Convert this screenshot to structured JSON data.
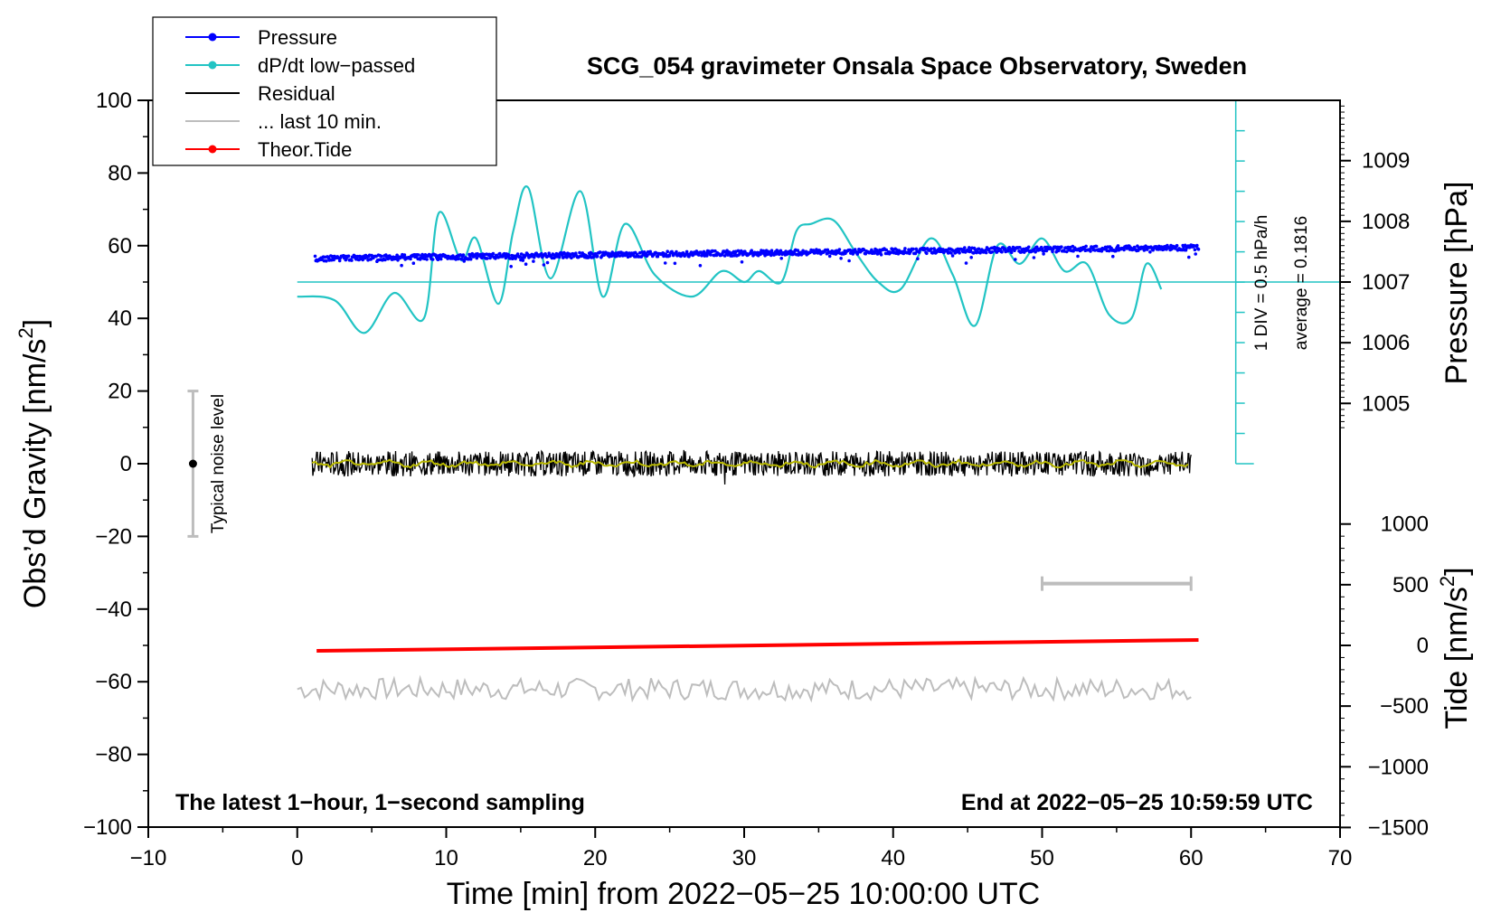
{
  "chart_data": {
    "type": "line",
    "title": "SCG_054 gravimeter Onsala Space Observatory, Sweden",
    "xlabel": "Time [min] from 2022−05−25 10:00:00 UTC",
    "ylabel": "Obs’d Gravity [nm/s2]",
    "ylabel_main": "Obs’d Gravity [nm/s",
    "ylabel_sup": "2",
    "ylabel_end": "]",
    "xlim": [
      -10,
      70
    ],
    "ylim": [
      -100,
      100
    ],
    "x_ticks": [
      "−10",
      "0",
      "10",
      "20",
      "30",
      "40",
      "50",
      "60",
      "70"
    ],
    "y_ticks": [
      "−100",
      "−80",
      "−60",
      "−40",
      "−20",
      "0",
      "20",
      "40",
      "60",
      "80",
      "100"
    ],
    "right_axes": {
      "pressure": {
        "label": "Pressure [hPa]",
        "ticks": [
          "1005",
          "1006",
          "1007",
          "1008",
          "1009"
        ],
        "tick_values": [
          1005,
          1006,
          1007,
          1008,
          1009
        ],
        "gravity_at_1007": 50,
        "gravity_per_hpa": 16.7
      },
      "tide": {
        "label_main": "Tide [nm/s",
        "label_sup": "2",
        "label_end": "]",
        "ticks": [
          "−1500",
          "−1000",
          "−500",
          "0",
          "500",
          "1000"
        ],
        "tick_values": [
          -1500,
          -1000,
          -500,
          0,
          500,
          1000
        ],
        "gravity_at_zero": -50,
        "gravity_per_500": 16.7
      }
    },
    "legend": {
      "position": "top-left",
      "entries": [
        {
          "label": "Pressure",
          "color": "#0000ff",
          "marker": true
        },
        {
          "label": "dP/dt low−passed",
          "color": "#22c4c4",
          "marker": true
        },
        {
          "label": "Residual",
          "color": "#000000",
          "marker": false
        },
        {
          "label": "... last 10 min.",
          "color": "#bdbdbd",
          "marker": false
        },
        {
          "label": "Theor.Tide",
          "color": "#ff0000",
          "marker": true
        }
      ]
    },
    "annotations": {
      "noise_level": "Typical noise level",
      "noise_level_x": -7,
      "noise_level_range": [
        -20,
        20
      ],
      "div_label": "1 DIV = 0.5 hPa/h",
      "average_label": "average = 0.1816",
      "bottom_left": "The latest 1−hour, 1−second sampling",
      "bottom_right": "End at 2022−05−25 10:59:59 UTC",
      "last10_bar_x": [
        50,
        60
      ],
      "last10_bar_y": -33,
      "dpdt_scale_x": 63,
      "dpdt_scale_range": [
        0,
        100
      ],
      "dpdt_baseline_y": 50
    },
    "series": [
      {
        "name": "Pressure",
        "color": "#0000ff",
        "x_start": 1.2,
        "x_end": 60.5,
        "y_start": 56.5,
        "y_end": 59.5,
        "scatter": 1.5
      },
      {
        "name": "dP/dt low-passed",
        "color": "#22c4c4",
        "x": [
          0,
          2.5,
          4.5,
          6.5,
          8.5,
          9.5,
          11,
          12,
          13.5,
          14.5,
          15.5,
          17,
          19,
          20.5,
          22,
          24,
          26.5,
          28.5,
          30,
          31,
          32.5,
          33.5,
          34.5,
          36,
          37.5,
          39,
          40.5,
          42.5,
          44,
          45.5,
          47,
          48.5,
          50,
          51.5,
          53,
          54.5,
          56,
          57,
          58
        ],
        "y": [
          46,
          45,
          36,
          47,
          40,
          69,
          56,
          62,
          44,
          64,
          76,
          51,
          75,
          46,
          66,
          52,
          46,
          53,
          50,
          53,
          50,
          64,
          66,
          67,
          58,
          50,
          48,
          62,
          52,
          38,
          60,
          55,
          62,
          53,
          55,
          41,
          40,
          55,
          48
        ]
      },
      {
        "name": "Residual",
        "color": "#000000",
        "x_start": 1,
        "x_end": 60,
        "y_center": 0,
        "amplitude": 3.5
      },
      {
        "name": "Residual low-passed",
        "color": "#b8b800",
        "x_start": 1,
        "x_end": 60,
        "y_center": 0,
        "amplitude": 1
      },
      {
        "name": "Theor.Tide",
        "color": "#ff0000",
        "x": [
          1.3,
          60.5
        ],
        "y": [
          -51.5,
          -48.5
        ]
      },
      {
        "name": "... last 10 min.",
        "color": "#bdbdbd",
        "x_start": 0,
        "x_end": 60,
        "y_center": -62,
        "amplitude": 3
      }
    ]
  }
}
